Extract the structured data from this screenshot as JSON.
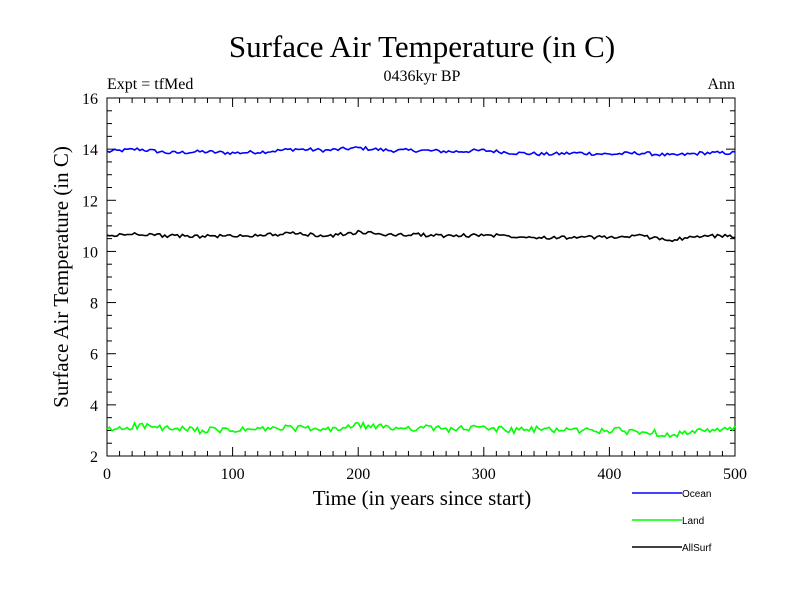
{
  "chart_data": {
    "type": "line",
    "title": "Surface Air Temperature (in C)",
    "subtitle": "0436kyr BP",
    "left_label": "Expt = tfMed",
    "right_label": "Ann",
    "xlabel": "Time (in years since start)",
    "ylabel": "Surface Air Temperature (in C)",
    "xlim": [
      0,
      500
    ],
    "ylim": [
      2,
      16
    ],
    "xticks": [
      0,
      100,
      200,
      300,
      400,
      500
    ],
    "yticks": [
      2,
      4,
      6,
      8,
      10,
      12,
      14,
      16
    ],
    "grid": false,
    "legend_position": "bottom-right",
    "x": [
      0,
      25,
      50,
      75,
      100,
      125,
      150,
      175,
      200,
      225,
      250,
      275,
      300,
      325,
      350,
      375,
      400,
      425,
      450,
      475,
      500
    ],
    "series": [
      {
        "name": "Ocean",
        "color": "#0000ff",
        "values": [
          13.9,
          14.0,
          13.85,
          13.9,
          13.85,
          13.9,
          14.0,
          13.95,
          14.05,
          13.95,
          13.95,
          13.9,
          13.95,
          13.85,
          13.8,
          13.85,
          13.8,
          13.85,
          13.75,
          13.85,
          13.85
        ]
      },
      {
        "name": "Land",
        "color": "#00ff00",
        "values": [
          3.0,
          3.2,
          3.05,
          3.0,
          3.0,
          3.05,
          3.1,
          3.0,
          3.2,
          3.1,
          3.1,
          3.05,
          3.1,
          3.0,
          3.05,
          3.0,
          3.0,
          2.95,
          2.85,
          2.95,
          3.05
        ]
      },
      {
        "name": "AllSurf",
        "color": "#000000",
        "values": [
          10.6,
          10.7,
          10.6,
          10.6,
          10.6,
          10.65,
          10.7,
          10.6,
          10.75,
          10.65,
          10.65,
          10.6,
          10.65,
          10.6,
          10.55,
          10.55,
          10.55,
          10.6,
          10.45,
          10.6,
          10.6
        ]
      }
    ]
  }
}
